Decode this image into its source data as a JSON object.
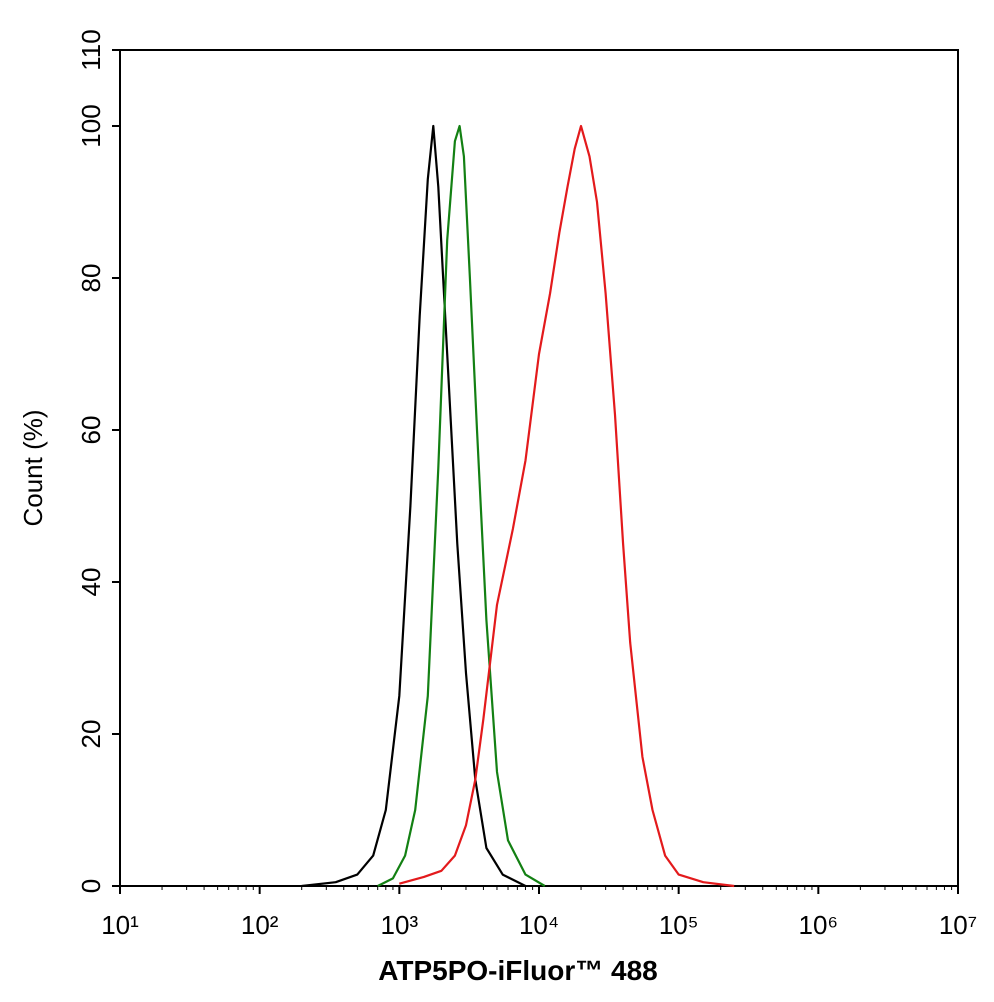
{
  "chart_data": {
    "type": "line",
    "xlabel": "ATP5PO-iFluor™ 488",
    "ylabel": "Count  (%)",
    "xscale": "log",
    "xlim": [
      10,
      10000000
    ],
    "xticks": [
      {
        "value": 10,
        "label": "10¹"
      },
      {
        "value": 100,
        "label": "10²"
      },
      {
        "value": 1000,
        "label": "10³"
      },
      {
        "value": 10000,
        "label": "10⁴"
      },
      {
        "value": 100000,
        "label": "10⁵"
      },
      {
        "value": 1000000,
        "label": "10⁶"
      },
      {
        "value": 10000000,
        "label": "10⁷"
      }
    ],
    "ylim": [
      0,
      110
    ],
    "yticks": [
      0,
      20,
      40,
      60,
      80,
      100,
      110
    ],
    "series": [
      {
        "color": "#000000",
        "x": [
          200,
          350,
          500,
          650,
          800,
          1000,
          1200,
          1400,
          1600,
          1750,
          1900,
          2200,
          2600,
          3000,
          3500,
          4200,
          5500,
          8000
        ],
        "values": [
          0,
          0.5,
          1.5,
          4,
          10,
          25,
          50,
          75,
          93,
          100,
          92,
          70,
          45,
          28,
          14,
          5,
          1.5,
          0
        ]
      },
      {
        "color": "#138013",
        "x": [
          700,
          900,
          1100,
          1300,
          1600,
          1900,
          2200,
          2500,
          2700,
          2900,
          3200,
          3600,
          4200,
          5000,
          6000,
          8000,
          11000
        ],
        "values": [
          0,
          1,
          4,
          10,
          25,
          55,
          85,
          98,
          100,
          96,
          80,
          60,
          35,
          15,
          6,
          1.5,
          0
        ]
      },
      {
        "color": "#e31a1c",
        "x": [
          1000,
          1500,
          2000,
          2500,
          3000,
          3500,
          4000,
          5000,
          6500,
          8000,
          10000,
          12000,
          14000,
          16000,
          18000,
          20000,
          23000,
          26000,
          30000,
          35000,
          40000,
          45000,
          55000,
          65000,
          80000,
          100000,
          150000,
          250000
        ],
        "values": [
          0.3,
          1.2,
          2,
          4,
          8,
          14,
          22,
          37,
          47,
          56,
          70,
          78,
          86,
          92,
          97,
          100,
          96,
          90,
          78,
          62,
          45,
          32,
          17,
          10,
          4,
          1.5,
          0.5,
          0
        ]
      }
    ]
  }
}
